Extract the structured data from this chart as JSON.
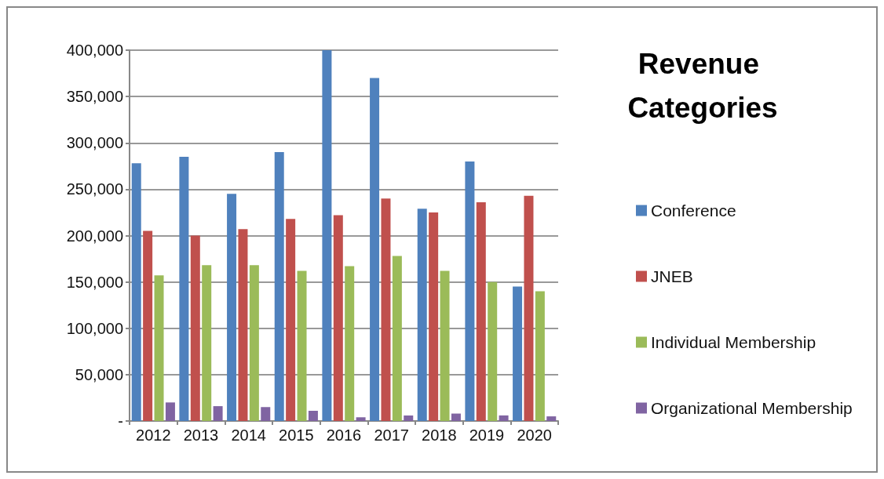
{
  "chart_data": {
    "type": "bar",
    "title": "Revenue Categories",
    "categories": [
      "2012",
      "2013",
      "2014",
      "2015",
      "2016",
      "2017",
      "2018",
      "2019",
      "2020"
    ],
    "series": [
      {
        "name": "Conference",
        "color": "#4f81bd",
        "values": [
          278000,
          285000,
          245000,
          290000,
          400000,
          370000,
          229000,
          280000,
          145000
        ]
      },
      {
        "name": "JNEB",
        "color": "#c0504d",
        "values": [
          205000,
          200000,
          207000,
          218000,
          222000,
          240000,
          225000,
          236000,
          243000
        ]
      },
      {
        "name": "Individual Membership",
        "color": "#9bbb59",
        "values": [
          157000,
          168000,
          168000,
          162000,
          167000,
          178000,
          162000,
          150000,
          140000
        ]
      },
      {
        "name": "Organizational Membership",
        "color": "#8064a2",
        "values": [
          20000,
          16000,
          15000,
          11000,
          4000,
          6000,
          8000,
          6000,
          5000
        ]
      }
    ],
    "ylim": [
      0,
      400000
    ],
    "yticks": [
      {
        "value": 0,
        "label": "-"
      },
      {
        "value": 50000,
        "label": "50,000"
      },
      {
        "value": 100000,
        "label": "100,000"
      },
      {
        "value": 150000,
        "label": "150,000"
      },
      {
        "value": 200000,
        "label": "200,000"
      },
      {
        "value": 250000,
        "label": "250,000"
      },
      {
        "value": 300000,
        "label": "300,000"
      },
      {
        "value": 350000,
        "label": "350,000"
      },
      {
        "value": 400000,
        "label": "400,000"
      }
    ],
    "grid": "y",
    "legend": "right"
  }
}
